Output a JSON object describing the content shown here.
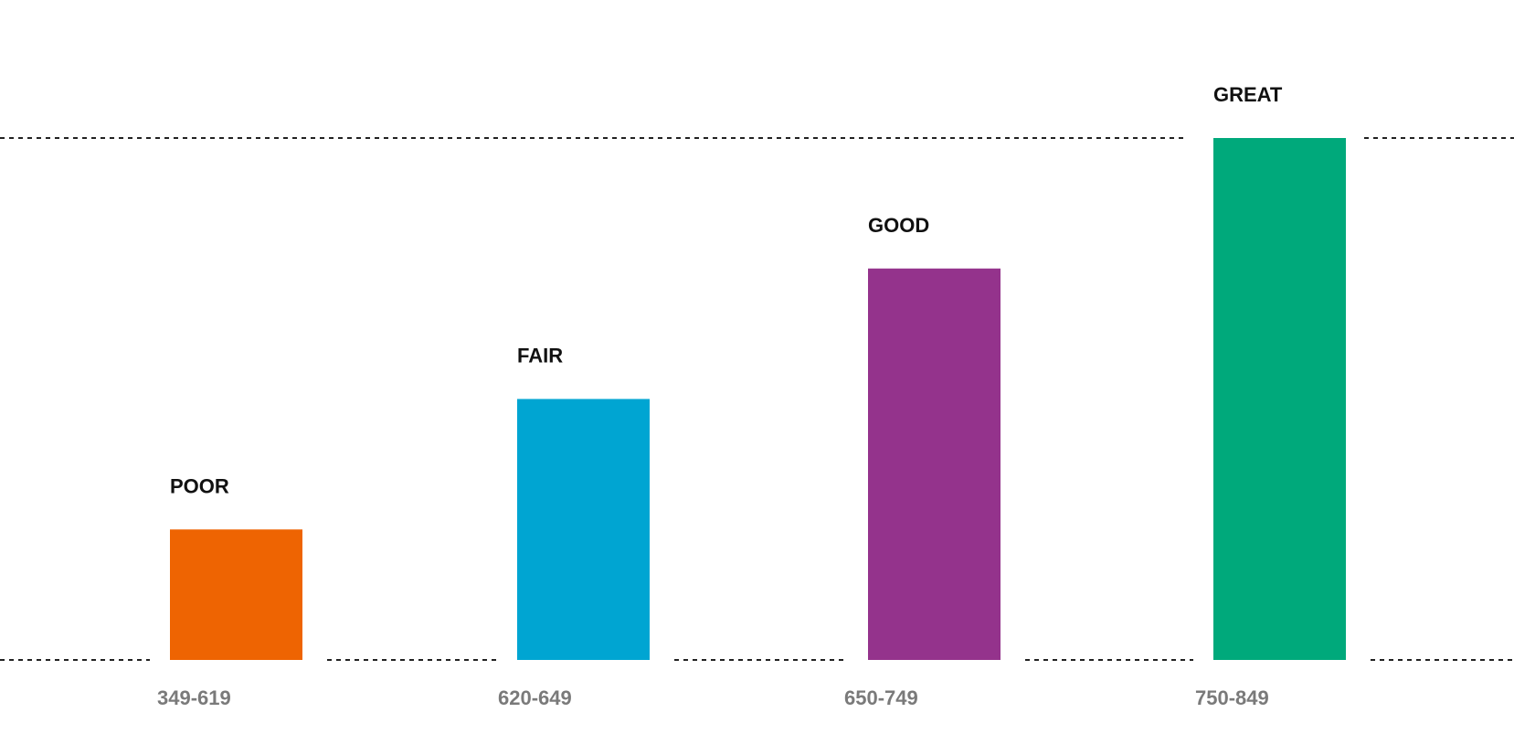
{
  "chart_data": {
    "type": "bar",
    "title": "",
    "xlabel": "",
    "ylabel": "",
    "categories": [
      "349-619",
      "620-649",
      "650-749",
      "750-849"
    ],
    "labels": [
      "POOR",
      "FAIR",
      "GOOD",
      "GREAT"
    ],
    "values": [
      1,
      2,
      3,
      4
    ],
    "colors": [
      "#EE6402",
      "#00A5D2",
      "#94338C",
      "#00A97B"
    ],
    "ylim": [
      0,
      4
    ],
    "grid": true,
    "legend": "none"
  }
}
